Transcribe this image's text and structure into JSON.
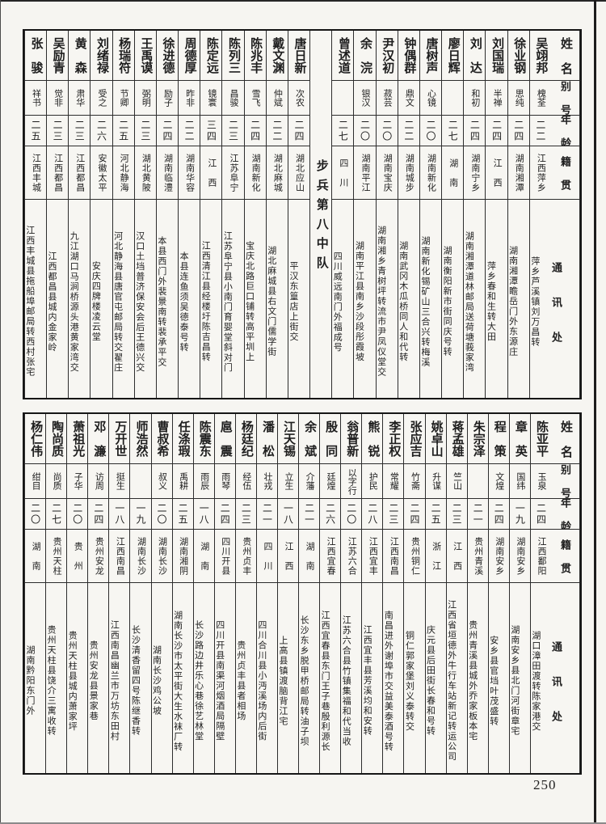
{
  "page": {
    "number": "250"
  },
  "headers": {
    "name": "姓名",
    "alias": "别号",
    "age": "年龄",
    "origin": "籍贯",
    "address": "通讯处"
  },
  "tables": [
    {
      "id": "top",
      "divider": {
        "before_index": 10,
        "label": "步兵第八中队"
      },
      "entries": [
        {
          "name": "吴翊邦",
          "alias": "槐荃",
          "age": "二二",
          "origin": "江西萍乡",
          "address": "萍乡芦溪镇刘万昌转"
        },
        {
          "name": "徐业钢",
          "alias": "思纯",
          "age": "二四",
          "origin": "湖南湘潭",
          "address": "湖南湘潭瞻岳门外东源庄"
        },
        {
          "name": "刘国瑞",
          "alias": "半禅",
          "age": "二四",
          "origin": "江　西",
          "address": "萍乡春和生转大田"
        },
        {
          "name": "刘　达",
          "alias": "和初",
          "age": "二四",
          "origin": "湖南宁乡",
          "address": "湖南湘潭道林邮局送荷塘莪家湾"
        },
        {
          "name": "廖日辉",
          "alias": "",
          "age": "二七",
          "origin": "湖　南",
          "address": "湖南衡阳新市街同庆号转"
        },
        {
          "name": "唐树声",
          "alias": "心镜",
          "age": "二〇",
          "origin": "湖南新化",
          "address": "湖南新化锡矿山三合兴转梅溪"
        },
        {
          "name": "钟偶群",
          "alias": "鼎文",
          "age": "二二",
          "origin": "湖南城步",
          "address": "湖南武冈木瓜桥同人和代转"
        },
        {
          "name": "尹汉初",
          "alias": "菽芸",
          "age": "二〇",
          "origin": "湖南宝庆",
          "address": "湖南湘乡青树坪转流市尹凤仪堂交"
        },
        {
          "name": "余　浣",
          "alias": "银汉",
          "age": "二〇",
          "origin": "湖南平江",
          "address": "湖南平江县南乡沙段彤霞坡"
        },
        {
          "name": "曾述道",
          "alias": "",
          "age": "二七",
          "origin": "四　川",
          "address": "四川威远南门外福成号"
        },
        {
          "name": "唐日新",
          "alias": "次农",
          "age": "二四",
          "origin": "湖北应山",
          "address": "平汉东篁店上街交"
        },
        {
          "name": "戴文渊",
          "alias": "仲斌",
          "age": "二二",
          "origin": "湖北麻城",
          "address": "湖北麻城县右文门儒学街"
        },
        {
          "name": "陈兆丰",
          "alias": "雪飞",
          "age": "二四",
          "origin": "湖南新化",
          "address": "宝庆北路巨口铺转高平圳上"
        },
        {
          "name": "陈列三",
          "alias": "昌骏",
          "age": "二三",
          "origin": "江苏阜宁",
          "address": "江苏阜宁县小南门育婴堂斜对门"
        },
        {
          "name": "陈定远",
          "alias": "镜寰",
          "age": "三四",
          "origin": "江　西",
          "address": "江西清江县经楼圩陈吉昌转"
        },
        {
          "name": "周德厚",
          "alias": "昨非",
          "age": "二二",
          "origin": "湖南华容",
          "address": "本县连鱼须吴德泰号转"
        },
        {
          "name": "徐进德",
          "alias": "励子",
          "age": "二四",
          "origin": "湖南临澧",
          "address": "本县西门外裴景南转裴承平交"
        },
        {
          "name": "王禹谟",
          "alias": "弼明",
          "age": "二三",
          "origin": "湖北黄陂",
          "address": "汉口土垱普济保安会后王德兴交"
        },
        {
          "name": "杨瑞符",
          "alias": "节卿",
          "age": "二五",
          "origin": "河北静海",
          "address": "河北静海县唐官屯邮局转交翟庄"
        },
        {
          "name": "刘绪禄",
          "alias": "受之",
          "age": "二六",
          "origin": "安徽太平",
          "address": "安庆四牌楼凌云堂"
        },
        {
          "name": "黄　森",
          "alias": "肃华",
          "age": "二三",
          "origin": "江西都昌",
          "address": "九江湖口马涧桥源头港黄家湾交"
        },
        {
          "name": "吴励青",
          "alias": "觉非",
          "age": "二三",
          "origin": "江西都昌",
          "address": "江西都昌县城内金家岭"
        },
        {
          "name": "张　骏",
          "alias": "祥书",
          "age": "二五",
          "origin": "江西丰城",
          "address": "江西丰城县拖船埠邮局转西村张宅"
        }
      ]
    },
    {
      "id": "bottom",
      "divider": null,
      "entries": [
        {
          "name": "陈亚平",
          "alias": "玉泉",
          "age": "二四",
          "origin": "江西鄱阳",
          "address": "湖口漳田渡转陈家港交"
        },
        {
          "name": "章　英",
          "alias": "国纬",
          "age": "一九",
          "origin": "湖南安乡",
          "address": "湖南安乡县北门河街章宅"
        },
        {
          "name": "程　策",
          "alias": "文煌",
          "age": "二四",
          "origin": "湖南安乡",
          "address": "安乡县官垱叶茂盛转"
        },
        {
          "name": "朱宗泽",
          "alias": "",
          "age": "二一",
          "origin": "贵州青溪",
          "address": "贵州青溪县城外乔家板本宅"
        },
        {
          "name": "蒋孟雄",
          "alias": "竺山",
          "age": "二三",
          "origin": "江　西",
          "address": "江西省垣德外牛行车站新记转运公司"
        },
        {
          "name": "姚卓山",
          "alias": "升谋",
          "age": "二五",
          "origin": "浙　江",
          "address": "庆元县后田街长春和号转"
        },
        {
          "name": "张应吉",
          "alias": "竹斋",
          "age": "二四",
          "origin": "贵州铜仁",
          "address": "铜仁郭家堡刘义泰转交"
        },
        {
          "name": "李正权",
          "alias": "常耀",
          "age": "二三",
          "origin": "江西南昌",
          "address": "南昌进外谢埠市交益美泰酒号转"
        },
        {
          "name": "熊　锐",
          "alias": "护民",
          "age": "二八",
          "origin": "江西宜丰",
          "address": "江西宜丰县芳溪均和安转"
        },
        {
          "name": "翁普新",
          "alias": "以字行",
          "age": "二〇",
          "origin": "江苏六合",
          "address": "江苏六合县竹镇集福和代当收"
        },
        {
          "name": "殷　同",
          "alias": "廷煌",
          "age": "二六",
          "origin": "江西宜春",
          "address": "江西宜春县东门王子巷殷利源长"
        },
        {
          "name": "余　斌",
          "alias": "介藩",
          "age": "二一",
          "origin": "湖　南",
          "address": "长沙东乡脱甲桥邮局转油子坝"
        },
        {
          "name": "江天锡",
          "alias": "立生",
          "age": "一八",
          "origin": "江　西",
          "address": "上高县镇渡脑背江宅"
        },
        {
          "name": "潘　松",
          "alias": "壮戎",
          "age": "二一",
          "origin": "四　川",
          "address": "四川合川县小沔溪场内后街"
        },
        {
          "name": "杨廷纪",
          "alias": "经伍",
          "age": "二三",
          "origin": "贵州贞丰",
          "address": "贵州贞丰县者相场"
        },
        {
          "name": "扈　震",
          "alias": "雨琴",
          "age": "二四",
          "origin": "四川开县",
          "address": "四川开县南渠河烟酒局隔壁"
        },
        {
          "name": "陈震东",
          "alias": "雨辰",
          "age": "一八",
          "origin": "湖　南",
          "address": "长沙路边井乐心巷徐艺林堂"
        },
        {
          "name": "任涤瑕",
          "alias": "禹耕",
          "age": "二五",
          "origin": "湖南湘阴",
          "address": "湖南长沙市太平街大生水袜厂转"
        },
        {
          "name": "曹叔希",
          "alias": "叔义",
          "age": "二〇",
          "origin": "湖南长沙",
          "address": "湖南长沙鸡公坡"
        },
        {
          "name": "师浩然",
          "alias": "",
          "age": "一九",
          "origin": "湖南长沙",
          "address": "长沙清香留四号陈继香转"
        },
        {
          "name": "万开世",
          "alias": "挺生",
          "age": "一八",
          "origin": "江西南昌",
          "address": "江西南昌幽兰市万坊东田村"
        },
        {
          "name": "邓　濂",
          "alias": "访周",
          "age": "二四",
          "origin": "贵州安龙",
          "address": "贵州安龙县景家巷"
        },
        {
          "name": "萧祖光",
          "alias": "子华",
          "age": "二〇",
          "origin": "贵　州",
          "address": "贵州天柱县城内萧家坪"
        },
        {
          "name": "陶尚质",
          "alias": "尚质",
          "age": "二七",
          "origin": "贵州天柱",
          "address": "贵州天柱县饶介三寓收转"
        },
        {
          "name": "杨仁伟",
          "alias": "绀目",
          "age": "二〇",
          "origin": "湖　南",
          "address": "湖南黔阳东门外"
        }
      ]
    }
  ]
}
